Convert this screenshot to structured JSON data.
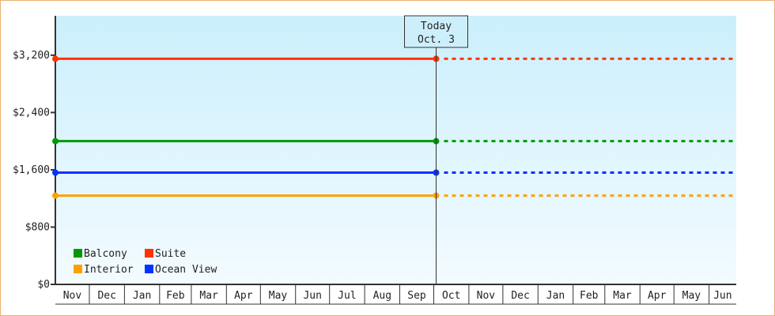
{
  "chart_data": {
    "type": "line",
    "ylim": [
      0,
      3750
    ],
    "yticks": [
      0,
      800,
      1600,
      2400,
      3200
    ],
    "ytick_labels": [
      "$0",
      "$800",
      "$1,600",
      "$2,400",
      "$3,200"
    ],
    "x_months": [
      "Nov",
      "Dec",
      "Jan",
      "Feb",
      "Mar",
      "Apr",
      "May",
      "Jun",
      "Jul",
      "Aug",
      "Sep",
      "Oct",
      "Nov",
      "Dec",
      "Jan",
      "Feb",
      "Mar",
      "Apr",
      "May",
      "Jun"
    ],
    "today": {
      "line1": "Today",
      "line2": "Oct. 3"
    },
    "grid": false,
    "legend_position": "bottom-left",
    "series": [
      {
        "name": "Balcony",
        "color": "#009900",
        "value": 2000
      },
      {
        "name": "Suite",
        "color": "#ff3300",
        "value": 3150
      },
      {
        "name": "Interior",
        "color": "#ffa000",
        "value": 1240
      },
      {
        "name": "Ocean View",
        "color": "#0033ff",
        "value": 1560
      }
    ],
    "note_style": {
      "past": "solid",
      "future": "dotted"
    }
  }
}
